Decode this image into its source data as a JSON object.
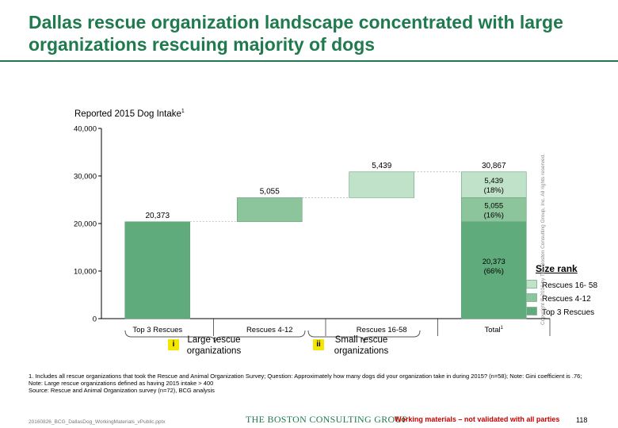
{
  "title": "Dallas rescue organization landscape concentrated with large organizations rescuing majority of dogs",
  "chart_data": {
    "type": "bar",
    "title": "Reported 2015 Dog Intake",
    "title_footnote_mark": "1",
    "yticks": [
      "0",
      "10,000",
      "20,000",
      "30,000",
      "40,000"
    ],
    "ylim": [
      0,
      40000
    ],
    "categories": [
      "Top 3 Rescues",
      "Rescues 4-12",
      "Rescues 16-58",
      "Total"
    ],
    "total_footnote_mark": "1",
    "waterfall": [
      {
        "category": "Top 3 Rescues",
        "start": 0,
        "value": 20373,
        "label": "20,373"
      },
      {
        "category": "Rescues 4-12",
        "start": 20373,
        "value": 5055,
        "label": "5,055"
      },
      {
        "category": "Rescues 16-58",
        "start": 25428,
        "value": 5439,
        "label": "5,439"
      }
    ],
    "total": {
      "label": "30,867",
      "segments": [
        {
          "value": 20373,
          "label": "20,373",
          "pct": "(66%)"
        },
        {
          "value": 5055,
          "label": "5,055",
          "pct": "(16%)"
        },
        {
          "value": 5439,
          "label": "5,439",
          "pct": "(18%)"
        }
      ]
    },
    "colors": {
      "top3": "#5fab7b",
      "r4_12": "#8cc49c",
      "r16_58": "#bfe2c8"
    },
    "legend_title": "Size rank",
    "legend": [
      "Rescues 16- 58",
      "Rescues 4-12",
      "Top 3 Rescues"
    ],
    "legend_placement": "right"
  },
  "brackets": [
    {
      "roman": "i",
      "label": "Large rescue organizations"
    },
    {
      "roman": "ii",
      "label": "Small rescue organizations"
    }
  ],
  "footnotes": [
    "1. Includes all rescue organizations that took the Rescue and Animal Organization Survey; Question: Approximately how many dogs did your organization take in during 2015? (n=58); Note: Gini coefficient is .76; Note: Large rescue organizations defined as having 2015 intake > 400",
    "Source: Rescue and Animal Organization survey (n=72), BCG analysis"
  ],
  "footer": {
    "file": "20160826_BCG_DallasDog_WorkingMaterials_vPublic.pptx",
    "logo": "THE BOSTON CONSULTING GROUP",
    "warning": "Working materials – not validated with all parties",
    "page": "118",
    "copyright": "Copyright © 2016 by The Boston Consulting Group, Inc. All rights reserved."
  }
}
